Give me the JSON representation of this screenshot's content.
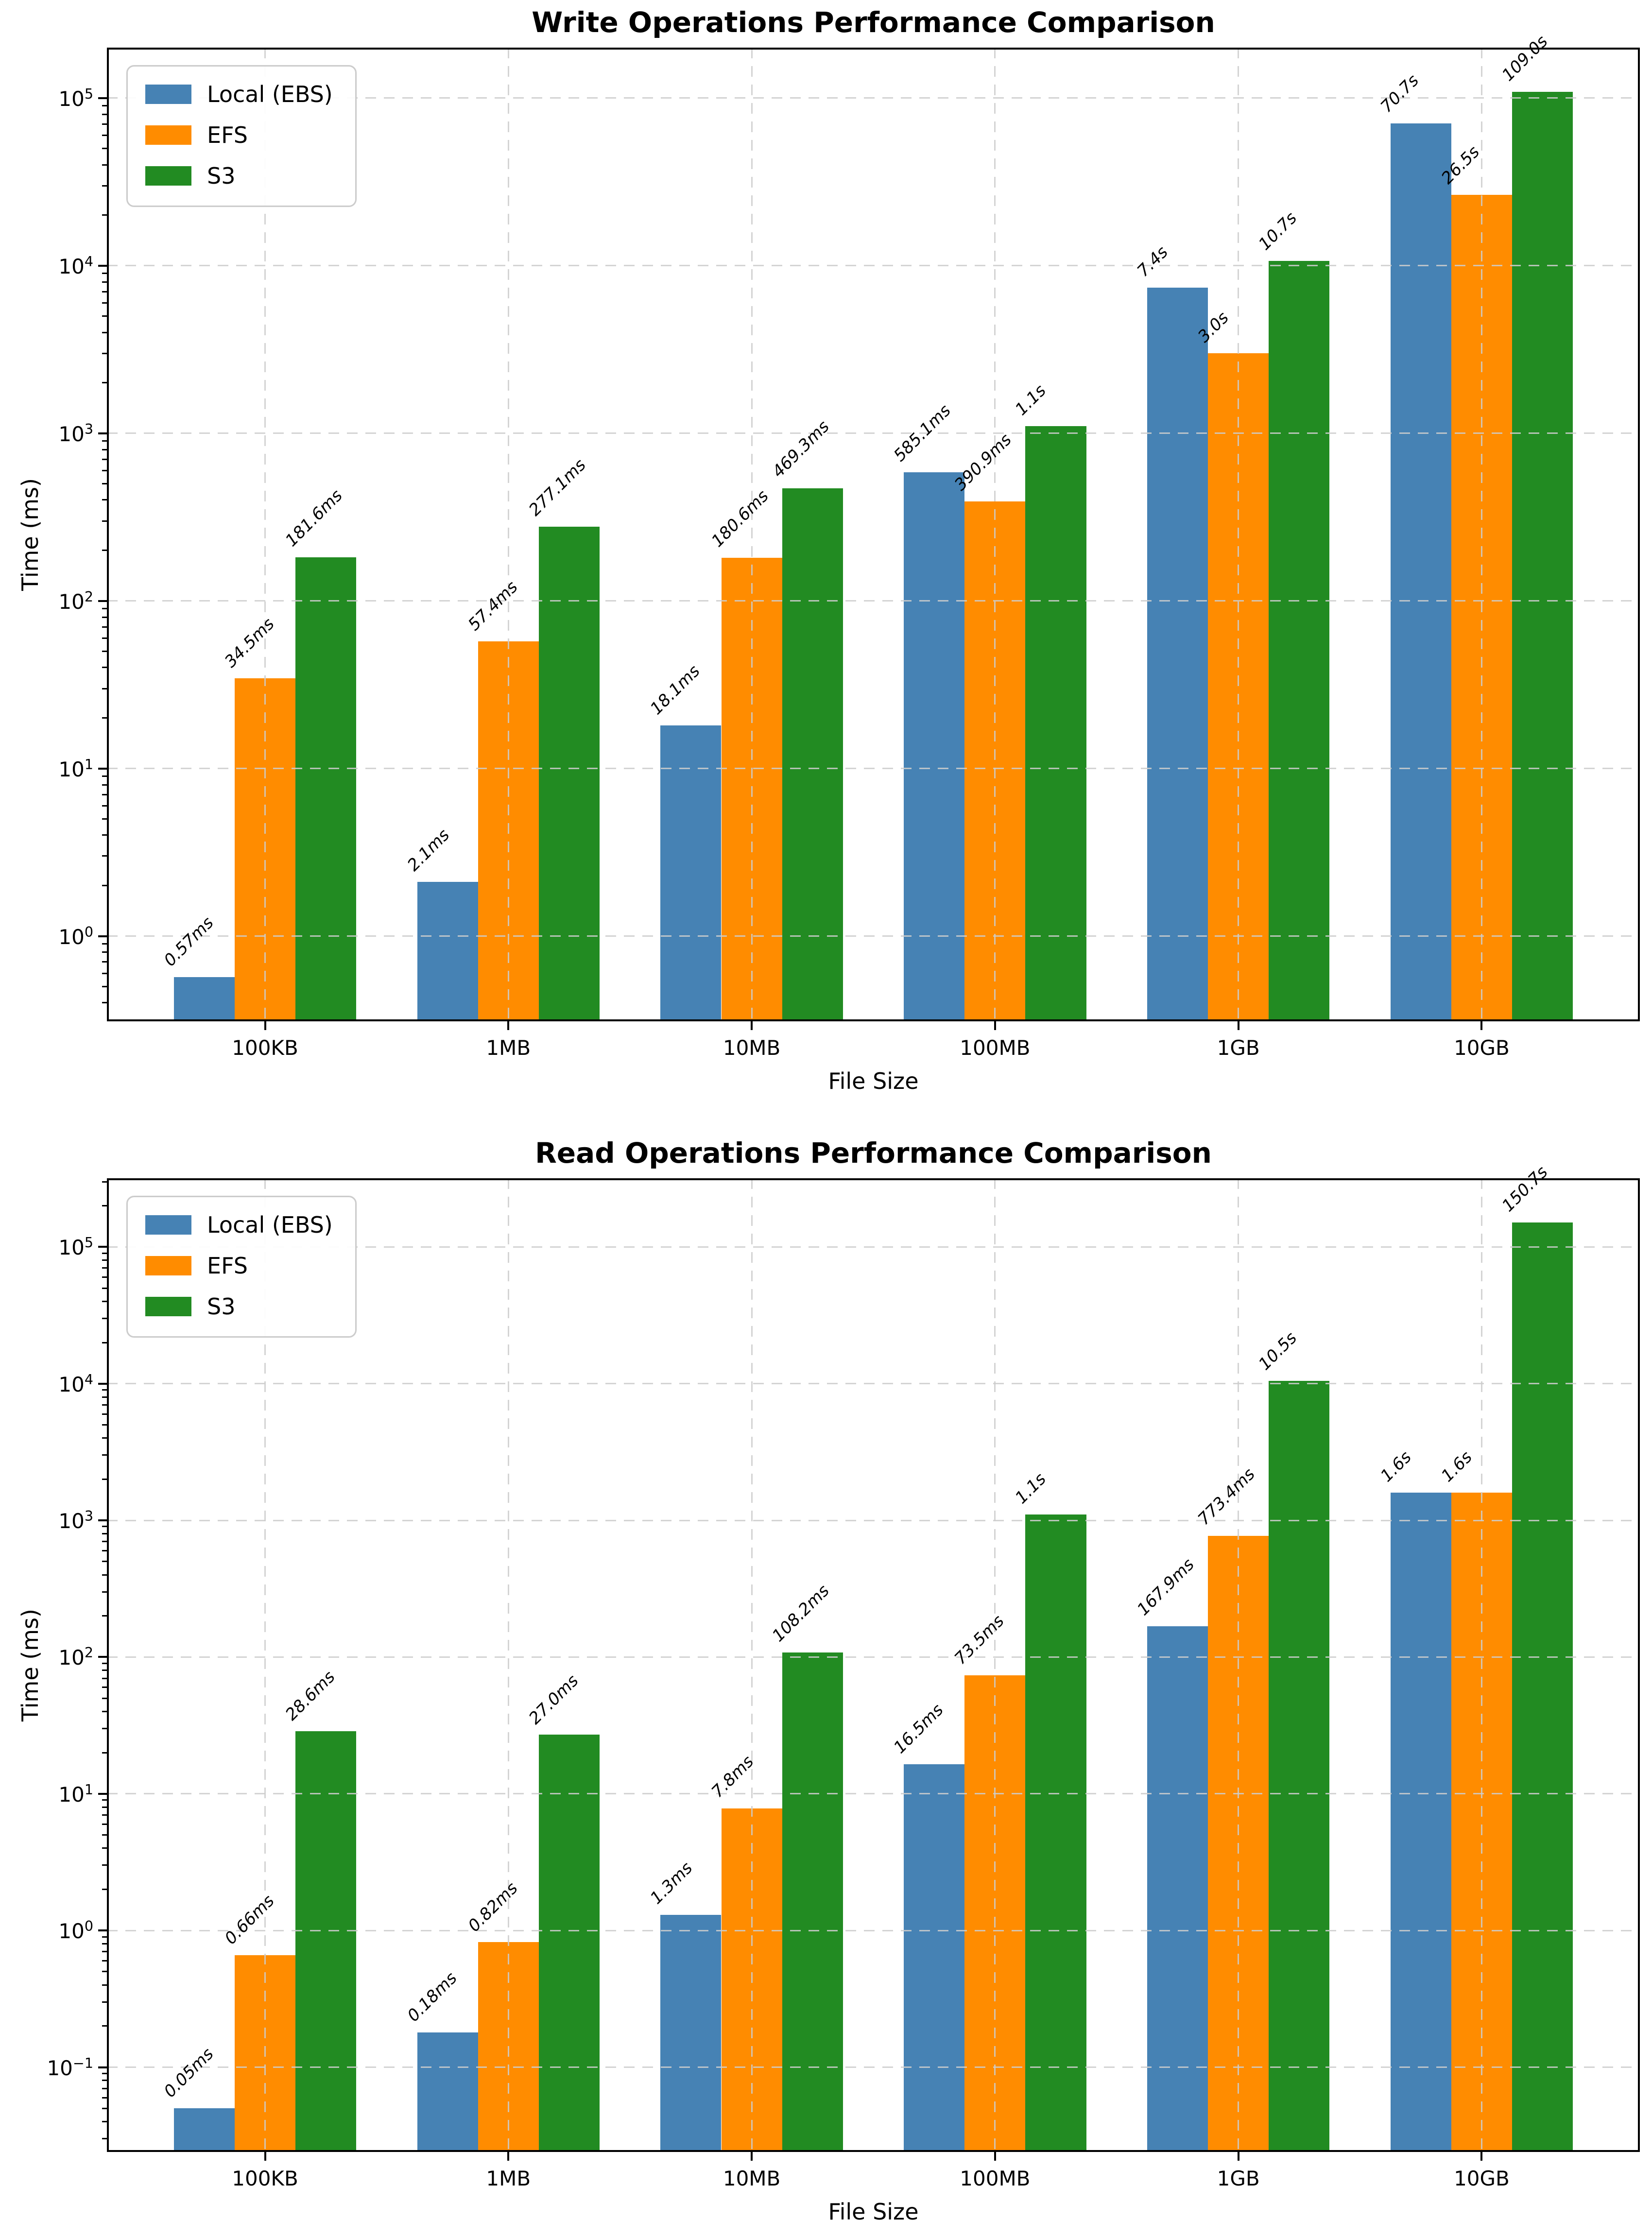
{
  "figure": {
    "background": "#ffffff",
    "series_colors": {
      "local": "#4682B4",
      "efs": "#FF8C00",
      "s3": "#228B22"
    },
    "grid_color": "#cdcdcd",
    "spine_color": "#000000"
  },
  "chart_data": [
    {
      "type": "bar",
      "title": "Write Operations Performance Comparison",
      "xlabel": "File Size",
      "ylabel": "Time (ms)",
      "yscale": "log",
      "grid": true,
      "legend_position": "upper left",
      "categories": [
        "100KB",
        "1MB",
        "10MB",
        "100MB",
        "1GB",
        "10GB"
      ],
      "ylim": [
        0.31,
        200000
      ],
      "ytick_exponents": [
        0,
        1,
        2,
        3,
        4,
        5
      ],
      "series": [
        {
          "name": "Local (EBS)",
          "color": "#4682B4",
          "values_ms": [
            0.57,
            2.1,
            18.1,
            585.1,
            7400,
            70700
          ],
          "labels": [
            "0.57ms",
            "2.1ms",
            "18.1ms",
            "585.1ms",
            "7.4s",
            "70.7s"
          ]
        },
        {
          "name": "EFS",
          "color": "#FF8C00",
          "values_ms": [
            34.5,
            57.4,
            180.6,
            390.9,
            3000,
            26500
          ],
          "labels": [
            "34.5ms",
            "57.4ms",
            "180.6ms",
            "390.9ms",
            "3.0s",
            "26.5s"
          ]
        },
        {
          "name": "S3",
          "color": "#228B22",
          "values_ms": [
            181.6,
            277.1,
            469.3,
            1100,
            10700,
            109000
          ],
          "labels": [
            "181.6ms",
            "277.1ms",
            "469.3ms",
            "1.1s",
            "10.7s",
            "109.0s"
          ]
        }
      ]
    },
    {
      "type": "bar",
      "title": "Read Operations Performance Comparison",
      "xlabel": "File Size",
      "ylabel": "Time (ms)",
      "yscale": "log",
      "grid": true,
      "legend_position": "upper left",
      "categories": [
        "100KB",
        "1MB",
        "10MB",
        "100MB",
        "1GB",
        "10GB"
      ],
      "ylim": [
        0.024,
        318000
      ],
      "ytick_exponents": [
        -1,
        0,
        1,
        2,
        3,
        4,
        5
      ],
      "series": [
        {
          "name": "Local (EBS)",
          "color": "#4682B4",
          "values_ms": [
            0.05,
            0.18,
            1.3,
            16.5,
            167.9,
            1600
          ],
          "labels": [
            "0.05ms",
            "0.18ms",
            "1.3ms",
            "16.5ms",
            "167.9ms",
            "1.6s"
          ]
        },
        {
          "name": "EFS",
          "color": "#FF8C00",
          "values_ms": [
            0.66,
            0.82,
            7.8,
            73.5,
            773.4,
            1600
          ],
          "labels": [
            "0.66ms",
            "0.82ms",
            "7.8ms",
            "73.5ms",
            "773.4ms",
            "1.6s"
          ]
        },
        {
          "name": "S3",
          "color": "#228B22",
          "values_ms": [
            28.6,
            27.0,
            108.2,
            1100,
            10500,
            150700
          ],
          "labels": [
            "28.6ms",
            "27.0ms",
            "108.2ms",
            "1.1s",
            "10.5s",
            "150.7s"
          ]
        }
      ]
    }
  ]
}
